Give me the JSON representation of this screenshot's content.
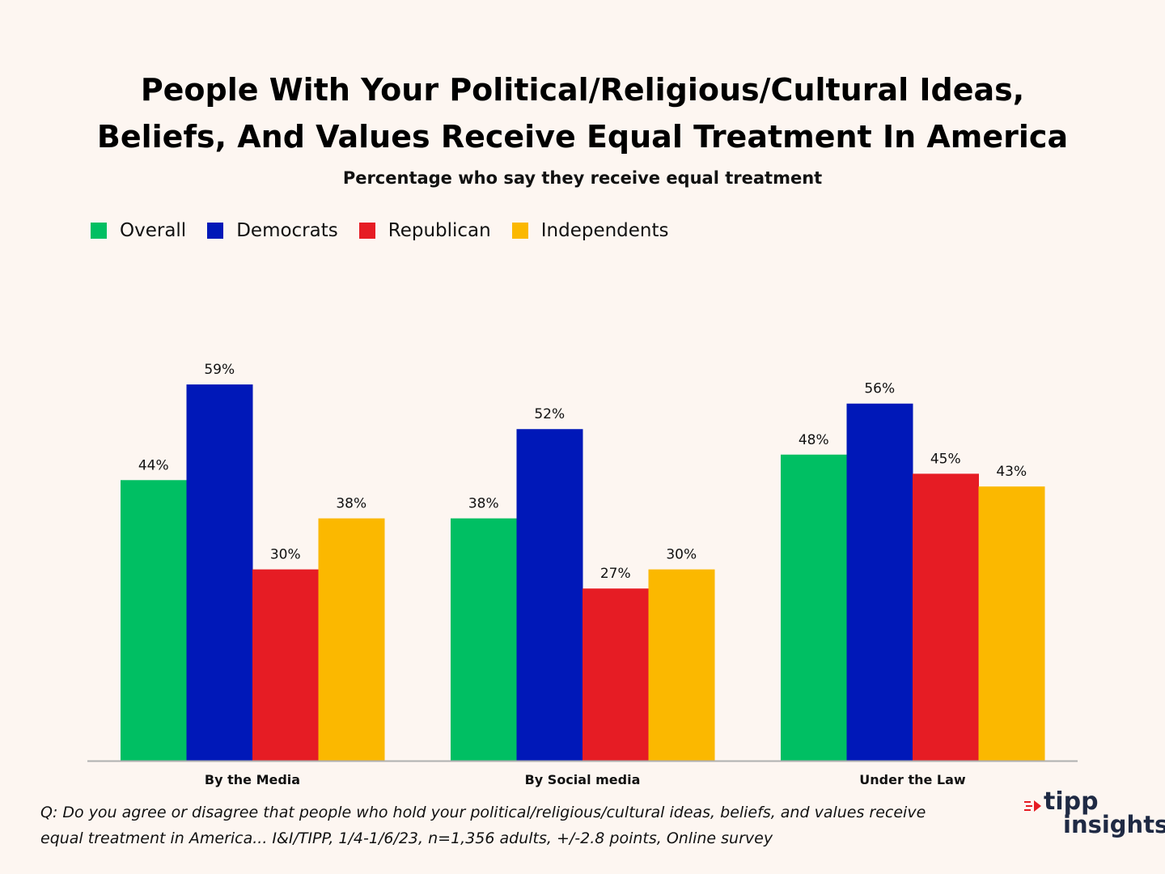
{
  "title_lines": [
    "People With Your Political/Religious/Cultural Ideas,",
    "Beliefs, And Values Receive Equal Treatment In America"
  ],
  "subtitle": "Percentage who say they receive equal treatment",
  "legend": [
    {
      "name": "Overall",
      "color": "#00bf63"
    },
    {
      "name": "Democrats",
      "color": "#0018b8"
    },
    {
      "name": "Republican",
      "color": "#e61c24"
    },
    {
      "name": "Independents",
      "color": "#fbb800"
    }
  ],
  "chart_data": {
    "type": "bar",
    "categories": [
      "By the Media",
      "By Social media",
      "Under the Law"
    ],
    "series": [
      {
        "name": "Overall",
        "values": [
          44,
          38,
          48
        ],
        "color": "#00bf63"
      },
      {
        "name": "Democrats",
        "values": [
          59,
          52,
          56
        ],
        "color": "#0018b8"
      },
      {
        "name": "Republican",
        "values": [
          30,
          27,
          45
        ],
        "color": "#e61c24"
      },
      {
        "name": "Independents",
        "values": [
          38,
          30,
          43
        ],
        "color": "#fbb800"
      }
    ],
    "value_suffix": "%",
    "ylim": [
      0,
      60
    ],
    "grid": false,
    "legend_position": "top-left"
  },
  "footnote_lines": [
    "Q: Do you agree or disagree that people who hold your political/religious/cultural ideas, beliefs, and values receive",
    "equal treatment in America... I&I/TIPP, 1/4-1/6/23, n=1,356 adults, +/-2.8 points, Online survey"
  ],
  "logo": {
    "top": "tipp",
    "bottom": "insights"
  }
}
